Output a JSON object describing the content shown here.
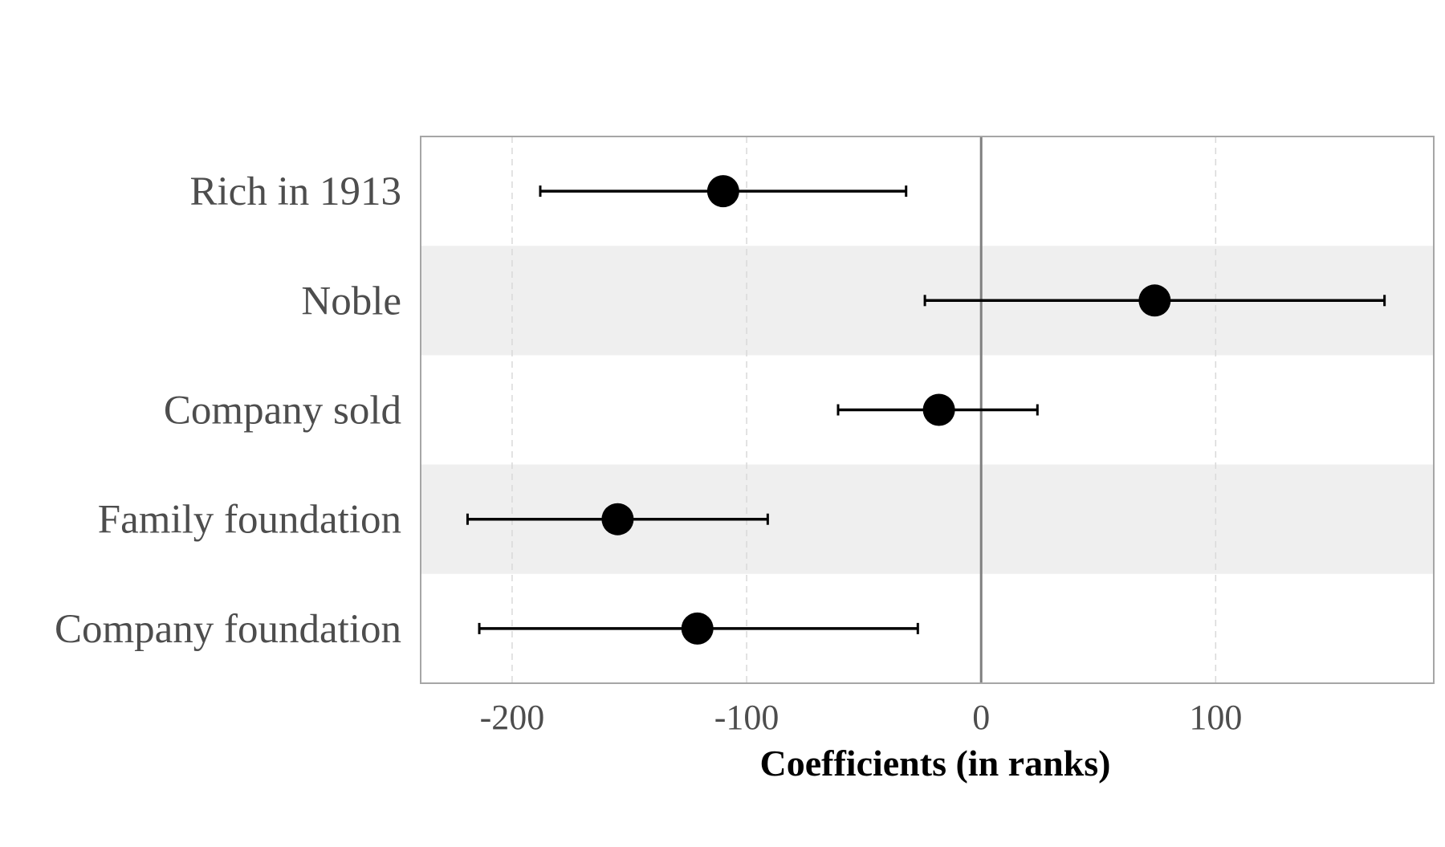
{
  "chart_data": {
    "type": "scatter",
    "subtype": "coefficient-plot-with-error-bars",
    "title": "",
    "xlabel": "Coefficients (in ranks)",
    "ylabel": "",
    "xlim": [
      -239,
      193
    ],
    "x_ticks": [
      -200,
      -100,
      0,
      100
    ],
    "x_tick_labels": [
      "-200",
      "-100",
      "0",
      "100"
    ],
    "reference_line_x": 0,
    "grid": "vertical dashed",
    "alternating_row_shading": true,
    "colors": {
      "point": "#000000",
      "errorbar": "#000000",
      "shade": "#efefef",
      "grid": "#d9d9d9",
      "border": "#a6a6a6",
      "zero_line": "#7f7f7f",
      "tick_text": "#4d4d4d"
    },
    "categories": [
      "Rich in 1913",
      "Noble",
      "Company sold",
      "Family foundation",
      "Company foundation"
    ],
    "estimates": [
      {
        "label": "Rich in 1913",
        "value": -110,
        "ci_low": -188,
        "ci_high": -32
      },
      {
        "label": "Noble",
        "value": 74,
        "ci_low": -24,
        "ci_high": 172
      },
      {
        "label": "Company sold",
        "value": -18,
        "ci_low": -61,
        "ci_high": 24
      },
      {
        "label": "Family foundation",
        "value": -155,
        "ci_low": -219,
        "ci_high": -91
      },
      {
        "label": "Company foundation",
        "value": -121,
        "ci_low": -214,
        "ci_high": -27
      }
    ]
  }
}
